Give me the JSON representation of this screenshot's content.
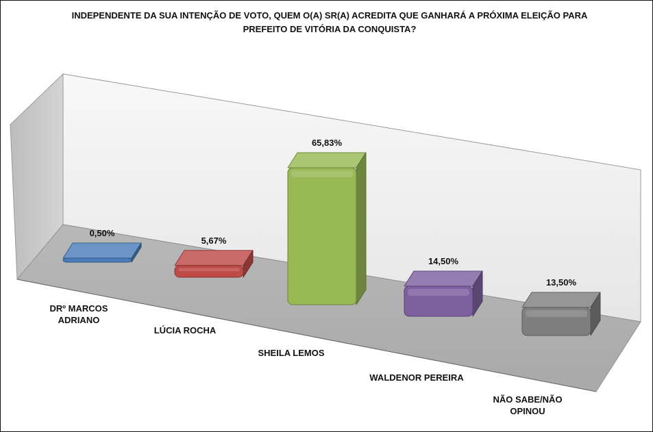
{
  "chart_data": {
    "type": "bar",
    "title_lines": [
      "INDEPENDENTE DA SUA INTENÇÃO DE VOTO, QUEM O(A) SR(A) ACREDITA QUE GANHARÁ A PRÓXIMA ELEIÇÃO PARA",
      "PREFEITO DE VITÓRIA DA CONQUISTA?"
    ],
    "categories": [
      [
        "DRº MARCOS",
        "ADRIANO"
      ],
      [
        "LÚCIA ROCHA"
      ],
      [
        "SHEILA LEMOS"
      ],
      [
        "WALDENOR PEREIRA"
      ],
      [
        "NÃO SABE/NÃO",
        "OPINOU"
      ]
    ],
    "values": [
      0.5,
      5.67,
      65.83,
      14.5,
      13.5
    ],
    "value_labels": [
      "0,50%",
      "5,67%",
      "65,83%",
      "14,50%",
      "13,50%"
    ],
    "colors": [
      "#4a7ebb",
      "#be4b48",
      "#98b954",
      "#7d60a0",
      "#7f7f7f"
    ],
    "ylim": [
      0,
      70
    ],
    "grid": false,
    "legend": "none",
    "style": "3d-perspective"
  }
}
